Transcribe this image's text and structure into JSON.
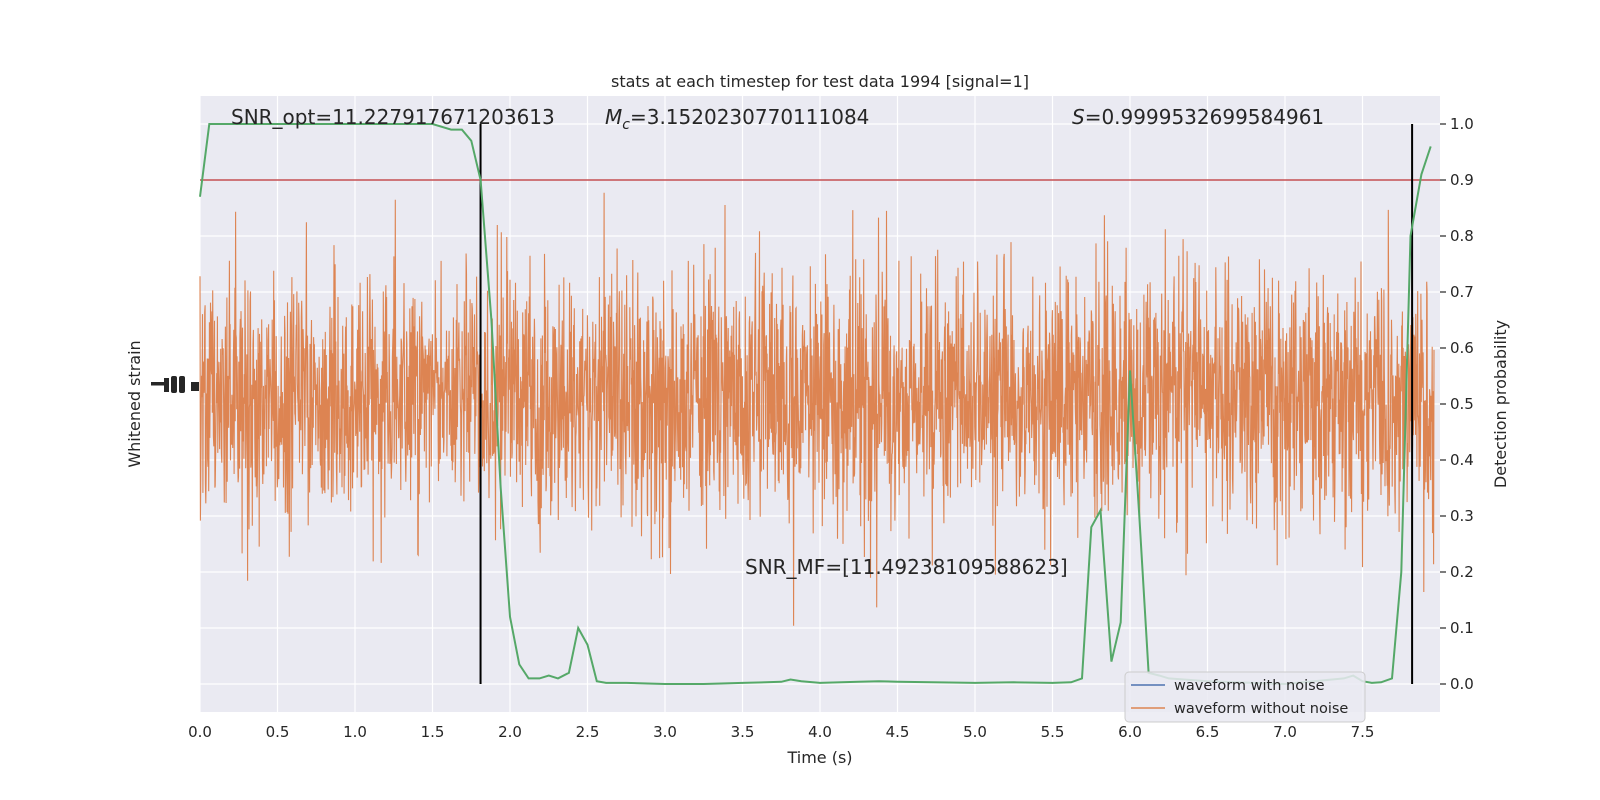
{
  "chart_data": {
    "type": "line",
    "title": "stats at each timestep for test data 1994 [signal=1]",
    "xlabel": "Time (s)",
    "ylabel_left": "Whitened strain",
    "ylabel_right": "Detection probability",
    "xlim": [
      0,
      8
    ],
    "ylim_right": [
      -0.05,
      1.05
    ],
    "x_ticks": [
      0.0,
      0.5,
      1.0,
      1.5,
      2.0,
      2.5,
      3.0,
      3.5,
      4.0,
      4.5,
      5.0,
      5.5,
      6.0,
      6.5,
      7.0,
      7.5
    ],
    "x_tick_labels": [
      "0.0",
      "0.5",
      "1.0",
      "1.5",
      "2.0",
      "2.5",
      "3.0",
      "3.5",
      "4.0",
      "4.5",
      "5.0",
      "5.5",
      "6.0",
      "6.5",
      "7.0",
      "7.5"
    ],
    "y_right_ticks": [
      0.0,
      0.1,
      0.2,
      0.3,
      0.4,
      0.5,
      0.6,
      0.7,
      0.8,
      0.9,
      1.0
    ],
    "y_right_tick_labels": [
      "0.0",
      "0.1",
      "0.2",
      "0.3",
      "0.4",
      "0.5",
      "0.6",
      "0.7",
      "0.8",
      "0.9",
      "1.0"
    ],
    "grid": true,
    "threshold": 0.9,
    "vlines": [
      1.81,
      7.82
    ],
    "annotations": {
      "snr_opt": "SNR_opt=11.227917671203613",
      "mc_symbol": "M",
      "mc_sub": "c",
      "mc_value": "=3.1520230770111084",
      "s_symbol": "S",
      "s_value": "=0.9999532699584961",
      "snr_mf": "SNR_MF=[11.49238109588623]"
    },
    "legend": {
      "placement": "lower-right",
      "entries": [
        "waveform with noise",
        "waveform without noise"
      ]
    },
    "colors": {
      "noise": "#4c72b0",
      "waveform": "#dd8452",
      "probability": "#55a868",
      "threshold": "#c44e52",
      "vline": "#000000",
      "background": "#eaeaf2",
      "grid": "#ffffff"
    },
    "series": [
      {
        "name": "waveform with noise",
        "note_key": "noise",
        "x": [],
        "y": []
      },
      {
        "name": "waveform without noise",
        "note_key": "waveform",
        "x": [],
        "y": []
      },
      {
        "key": "detection_probability",
        "x": [
          0.0,
          0.06,
          0.12,
          0.25,
          0.5,
          0.75,
          1.0,
          1.25,
          1.5,
          1.62,
          1.69,
          1.75,
          1.81,
          1.88,
          1.94,
          2.0,
          2.06,
          2.12,
          2.19,
          2.25,
          2.31,
          2.38,
          2.44,
          2.5,
          2.56,
          2.62,
          2.75,
          3.0,
          3.25,
          3.5,
          3.75,
          3.81,
          3.88,
          4.0,
          4.25,
          4.38,
          4.5,
          5.0,
          5.25,
          5.5,
          5.62,
          5.69,
          5.75,
          5.81,
          5.88,
          5.94,
          6.0,
          6.06,
          6.12,
          6.19,
          6.25,
          6.5,
          7.0,
          7.38,
          7.44,
          7.5,
          7.56,
          7.62,
          7.69,
          7.75,
          7.81,
          7.88,
          7.94
        ],
        "y": [
          0.87,
          1.0,
          1.0,
          1.0,
          1.0,
          1.0,
          1.0,
          1.0,
          1.0,
          0.99,
          0.99,
          0.97,
          0.9,
          0.65,
          0.35,
          0.12,
          0.035,
          0.01,
          0.01,
          0.015,
          0.01,
          0.02,
          0.1,
          0.07,
          0.005,
          0.002,
          0.002,
          0.0,
          0.0,
          0.002,
          0.004,
          0.008,
          0.005,
          0.002,
          0.004,
          0.005,
          0.004,
          0.002,
          0.003,
          0.002,
          0.003,
          0.01,
          0.28,
          0.31,
          0.04,
          0.11,
          0.56,
          0.3,
          0.02,
          0.015,
          0.01,
          0.005,
          0.0,
          0.01,
          0.015,
          0.005,
          0.002,
          0.003,
          0.01,
          0.2,
          0.8,
          0.91,
          0.96
        ]
      }
    ]
  }
}
